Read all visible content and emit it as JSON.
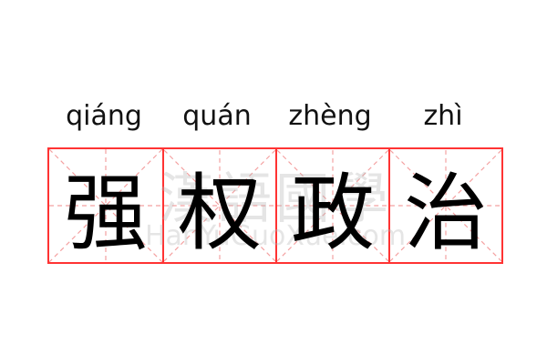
{
  "pinyin": [
    "qiáng",
    "quán",
    "zhèng",
    "zhì"
  ],
  "characters": [
    "强",
    "权",
    "政",
    "治"
  ],
  "watermark": {
    "chinese": "漢語國學",
    "latin": "HanYuGuoXue.com"
  },
  "colors": {
    "grid_border": "#ff3333",
    "guide_lines": "#f4a0a0",
    "text": "#000000"
  }
}
